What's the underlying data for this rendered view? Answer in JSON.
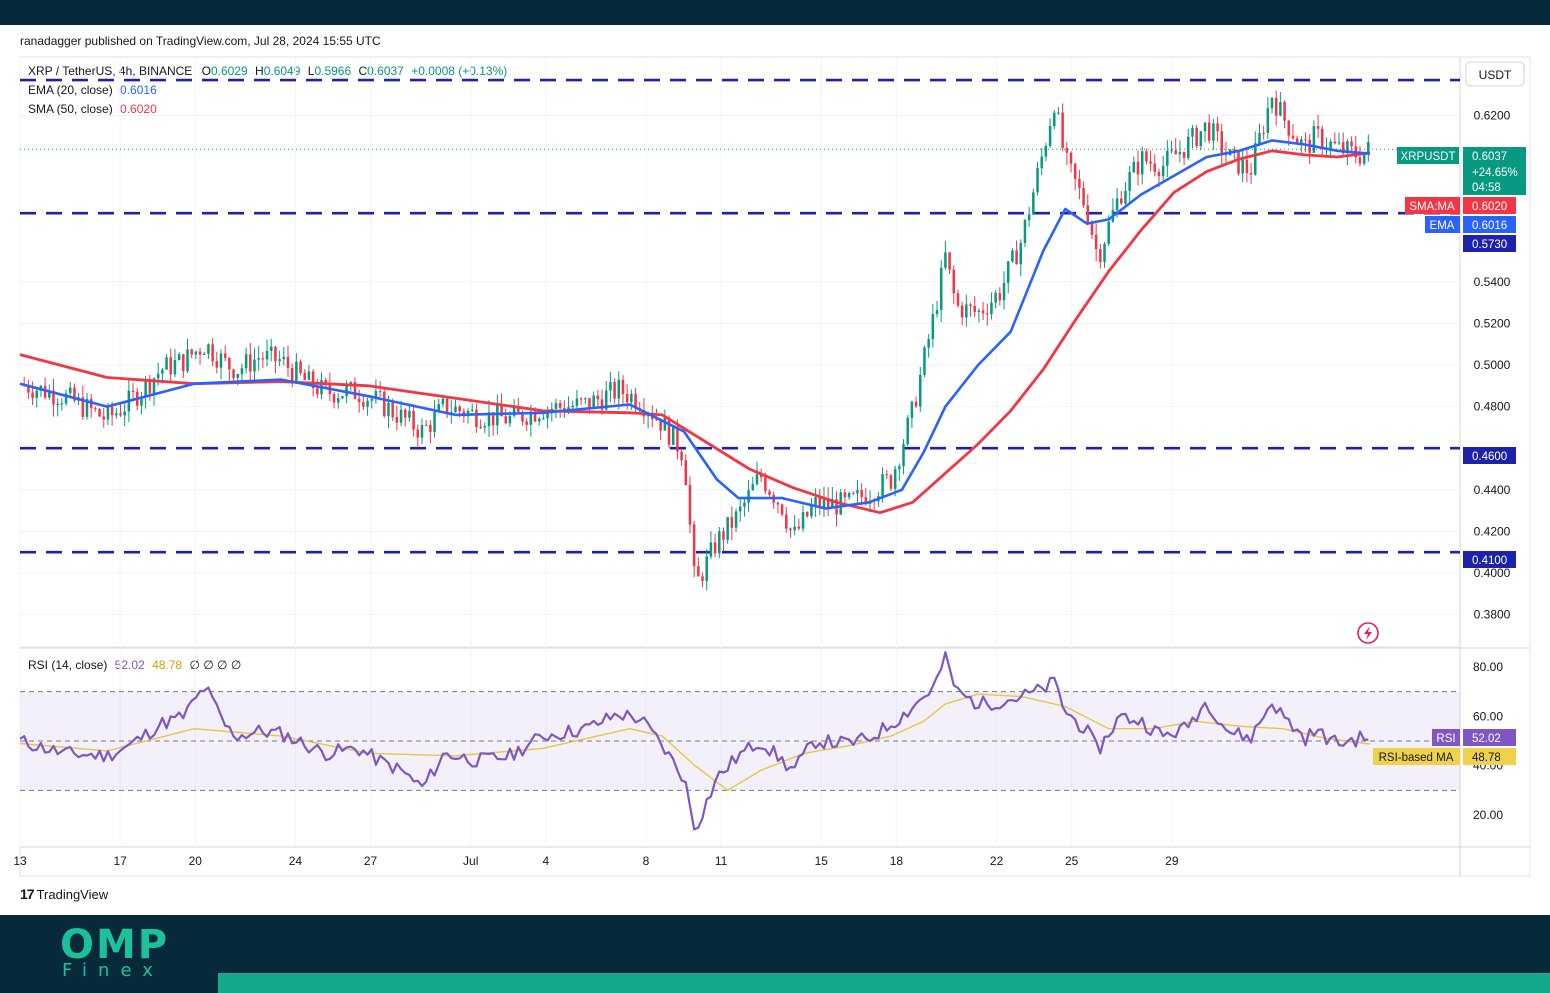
{
  "header": {
    "published": "ranadagger published on TradingView.com, Jul 28, 2024 15:55 UTC"
  },
  "symbol_line": {
    "symbol": "XRP / TetherUS, 4h, BINANCE",
    "o_label": "O",
    "o": "0.6029",
    "h_label": "H",
    "h": "0.6049",
    "l_label": "L",
    "l": "0.5966",
    "c_label": "C",
    "c": "0.6037",
    "change": "+0.0008 (+0.13%)"
  },
  "ema_line": {
    "label": "EMA (20, close)",
    "value": "0.6016"
  },
  "sma_line": {
    "label": "SMA (50, close)",
    "value": "0.6020"
  },
  "rsi_line": {
    "label": "RSI (14, close)",
    "rsi": "52.02",
    "ma": "48.78",
    "extra": "∅ ∅ ∅ ∅"
  },
  "currency_badge": "USDT",
  "tags": {
    "symbol": "XRPUSDT",
    "price": "0.6037",
    "pct": "+24.65%",
    "countdown": "04:58",
    "sma_name": "SMA:MA",
    "sma_val": "0.6020",
    "ema_name": "EMA",
    "ema_val": "0.6016",
    "level_high": "0.5730",
    "level_mid": "0.4600",
    "level_low": "0.4100",
    "rsi_name": "RSI",
    "rsi_val": "52.02",
    "rsima_name": "RSI-based MA",
    "rsima_val": "48.78"
  },
  "brand": {
    "mark": "17",
    "name": "TradingView"
  },
  "footer_logo": {
    "top": "OMP",
    "bottom": "Finex"
  },
  "colors": {
    "up": "#089981",
    "down": "#f23645",
    "ema": "#2962ff",
    "sma": "#f23645",
    "level": "#1e22aa",
    "rsi": "#7e57c2",
    "rsi_ma": "#e8c545",
    "accent": "#14a98c"
  },
  "chart_data": [
    {
      "type": "candlestick",
      "title": "XRP / TetherUS, 4h, BINANCE",
      "ylabel": "USDT",
      "ylim": [
        0.37,
        0.642
      ],
      "y_ticks": [
        "0.6200",
        "0.5400",
        "0.5200",
        "0.5000",
        "0.4800",
        "0.4400",
        "0.4200",
        "0.4000",
        "0.3800"
      ],
      "x_ticks": [
        "13",
        "17",
        "20",
        "24",
        "27",
        "Jul",
        "4",
        "8",
        "11",
        "15",
        "18",
        "22",
        "25",
        "29"
      ],
      "horizontal_levels": [
        0.637,
        0.573,
        0.46,
        0.41
      ],
      "price_path": [
        [
          0,
          0.491
        ],
        [
          4,
          0.485
        ],
        [
          8,
          0.474
        ],
        [
          10,
          0.482
        ],
        [
          13,
          0.498
        ],
        [
          15,
          0.502
        ],
        [
          17,
          0.51
        ],
        [
          19,
          0.5
        ],
        [
          20,
          0.498
        ],
        [
          22,
          0.504
        ],
        [
          24,
          0.502
        ],
        [
          26,
          0.493
        ],
        [
          28,
          0.487
        ],
        [
          31,
          0.487
        ],
        [
          33,
          0.482
        ],
        [
          35,
          0.475
        ],
        [
          37,
          0.468
        ],
        [
          39,
          0.48
        ],
        [
          42,
          0.476
        ],
        [
          45,
          0.474
        ],
        [
          48,
          0.479
        ],
        [
          52,
          0.481
        ],
        [
          55,
          0.488
        ],
        [
          57,
          0.483
        ],
        [
          59,
          0.472
        ],
        [
          61,
          0.457
        ],
        [
          62,
          0.393
        ],
        [
          64,
          0.415
        ],
        [
          66,
          0.428
        ],
        [
          68,
          0.447
        ],
        [
          70,
          0.432
        ],
        [
          71,
          0.417
        ],
        [
          73,
          0.433
        ],
        [
          76,
          0.433
        ],
        [
          78,
          0.439
        ],
        [
          80,
          0.445
        ],
        [
          81,
          0.461
        ],
        [
          82,
          0.478
        ],
        [
          84,
          0.525
        ],
        [
          85,
          0.552
        ],
        [
          86,
          0.528
        ],
        [
          88,
          0.525
        ],
        [
          90,
          0.535
        ],
        [
          92,
          0.56
        ],
        [
          94,
          0.603
        ],
        [
          95,
          0.627
        ],
        [
          96,
          0.598
        ],
        [
          98,
          0.575
        ],
        [
          99,
          0.552
        ],
        [
          101,
          0.582
        ],
        [
          103,
          0.599
        ],
        [
          105,
          0.596
        ],
        [
          107,
          0.605
        ],
        [
          109,
          0.615
        ],
        [
          111,
          0.6
        ],
        [
          113,
          0.593
        ],
        [
          115,
          0.63
        ],
        [
          116,
          0.619
        ],
        [
          118,
          0.604
        ],
        [
          119,
          0.61
        ],
        [
          121,
          0.604
        ],
        [
          123,
          0.601
        ],
        [
          124,
          0.6037
        ]
      ],
      "ema": {
        "name": "EMA (20, close)",
        "path": [
          [
            0,
            0.491
          ],
          [
            8,
            0.48
          ],
          [
            16,
            0.491
          ],
          [
            24,
            0.493
          ],
          [
            32,
            0.485
          ],
          [
            40,
            0.476
          ],
          [
            48,
            0.477
          ],
          [
            56,
            0.481
          ],
          [
            61,
            0.468
          ],
          [
            64,
            0.445
          ],
          [
            66,
            0.436
          ],
          [
            70,
            0.436
          ],
          [
            74,
            0.431
          ],
          [
            78,
            0.434
          ],
          [
            81,
            0.44
          ],
          [
            83,
            0.458
          ],
          [
            85,
            0.48
          ],
          [
            88,
            0.5
          ],
          [
            91,
            0.516
          ],
          [
            94,
            0.555
          ],
          [
            96,
            0.575
          ],
          [
            98,
            0.568
          ],
          [
            100,
            0.57
          ],
          [
            103,
            0.582
          ],
          [
            106,
            0.591
          ],
          [
            109,
            0.6
          ],
          [
            112,
            0.603
          ],
          [
            115,
            0.608
          ],
          [
            118,
            0.606
          ],
          [
            121,
            0.603
          ],
          [
            124,
            0.6016
          ]
        ]
      },
      "sma": {
        "name": "SMA (50, close)",
        "path": [
          [
            0,
            0.505
          ],
          [
            8,
            0.494
          ],
          [
            16,
            0.491
          ],
          [
            24,
            0.492
          ],
          [
            32,
            0.49
          ],
          [
            40,
            0.484
          ],
          [
            48,
            0.478
          ],
          [
            56,
            0.477
          ],
          [
            59,
            0.476
          ],
          [
            63,
            0.463
          ],
          [
            67,
            0.45
          ],
          [
            71,
            0.441
          ],
          [
            75,
            0.434
          ],
          [
            79,
            0.429
          ],
          [
            82,
            0.434
          ],
          [
            85,
            0.448
          ],
          [
            88,
            0.462
          ],
          [
            91,
            0.478
          ],
          [
            94,
            0.498
          ],
          [
            97,
            0.522
          ],
          [
            100,
            0.545
          ],
          [
            103,
            0.565
          ],
          [
            106,
            0.583
          ],
          [
            109,
            0.593
          ],
          [
            112,
            0.599
          ],
          [
            115,
            0.603
          ],
          [
            118,
            0.601
          ],
          [
            121,
            0.6
          ],
          [
            124,
            0.602
          ]
        ]
      }
    },
    {
      "type": "line",
      "title": "RSI (14, close)",
      "ylim": [
        10,
        87
      ],
      "y_ticks": [
        "80.00",
        "60.00",
        "40.00",
        "20.00"
      ],
      "band": [
        30,
        70
      ],
      "mid": 50,
      "series": [
        {
          "name": "RSI",
          "values": [
            [
              0,
              50
            ],
            [
              4,
              45
            ],
            [
              8,
              44
            ],
            [
              10,
              48
            ],
            [
              13,
              57
            ],
            [
              15,
              60
            ],
            [
              17,
              72
            ],
            [
              19,
              55
            ],
            [
              20,
              52
            ],
            [
              22,
              54
            ],
            [
              24,
              53
            ],
            [
              26,
              49
            ],
            [
              28,
              45
            ],
            [
              31,
              47
            ],
            [
              33,
              42
            ],
            [
              35,
              38
            ],
            [
              37,
              31
            ],
            [
              39,
              45
            ],
            [
              42,
              42
            ],
            [
              45,
              44
            ],
            [
              48,
              52
            ],
            [
              52,
              55
            ],
            [
              55,
              61
            ],
            [
              57,
              59
            ],
            [
              59,
              48
            ],
            [
              61,
              35
            ],
            [
              62,
              14
            ],
            [
              64,
              35
            ],
            [
              66,
              44
            ],
            [
              68,
              50
            ],
            [
              70,
              42
            ],
            [
              71,
              38
            ],
            [
              73,
              50
            ],
            [
              76,
              49
            ],
            [
              78,
              51
            ],
            [
              80,
              57
            ],
            [
              81,
              60
            ],
            [
              82,
              64
            ],
            [
              84,
              72
            ],
            [
              85,
              84
            ],
            [
              86,
              70
            ],
            [
              88,
              65
            ],
            [
              90,
              66
            ],
            [
              92,
              68
            ],
            [
              94,
              71
            ],
            [
              95,
              74
            ],
            [
              96,
              62
            ],
            [
              98,
              54
            ],
            [
              99,
              46
            ],
            [
              101,
              60
            ],
            [
              103,
              58
            ],
            [
              105,
              52
            ],
            [
              107,
              55
            ],
            [
              109,
              66
            ],
            [
              111,
              54
            ],
            [
              113,
              51
            ],
            [
              115,
              66
            ],
            [
              116,
              60
            ],
            [
              118,
              51
            ],
            [
              119,
              54
            ],
            [
              121,
              49
            ],
            [
              123,
              51
            ],
            [
              124,
              52.02
            ]
          ]
        },
        {
          "name": "RSI-based MA",
          "values": [
            [
              0,
              49
            ],
            [
              8,
              46
            ],
            [
              16,
              55
            ],
            [
              24,
              52
            ],
            [
              32,
              45
            ],
            [
              40,
              44
            ],
            [
              48,
              47
            ],
            [
              56,
              55
            ],
            [
              59,
              52
            ],
            [
              62,
              40
            ],
            [
              65,
              30
            ],
            [
              68,
              38
            ],
            [
              72,
              45
            ],
            [
              76,
              48
            ],
            [
              80,
              52
            ],
            [
              83,
              58
            ],
            [
              85,
              65
            ],
            [
              88,
              69
            ],
            [
              92,
              68
            ],
            [
              96,
              64
            ],
            [
              100,
              55
            ],
            [
              104,
              55
            ],
            [
              108,
              58
            ],
            [
              112,
              56
            ],
            [
              116,
              55
            ],
            [
              120,
              51
            ],
            [
              124,
              48.78
            ]
          ]
        }
      ]
    }
  ]
}
